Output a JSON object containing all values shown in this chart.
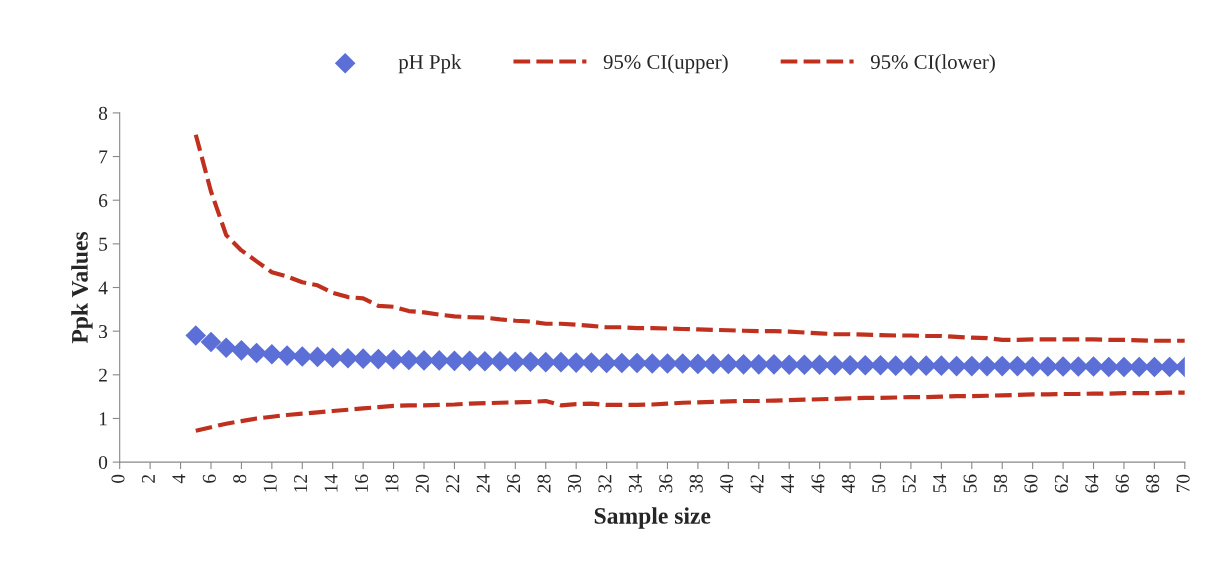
{
  "chart_data": {
    "type": "line",
    "xlabel": "Sample size",
    "ylabel": "Ppk Values",
    "xlim": [
      0,
      70
    ],
    "xticks": [
      0,
      2,
      4,
      6,
      8,
      10,
      12,
      14,
      16,
      18,
      20,
      22,
      24,
      26,
      28,
      30,
      32,
      34,
      36,
      38,
      40,
      42,
      44,
      46,
      48,
      50,
      52,
      54,
      56,
      58,
      60,
      62,
      64,
      66,
      68,
      70
    ],
    "ylim": [
      0,
      8
    ],
    "yticks": [
      0,
      1,
      2,
      3,
      4,
      5,
      6,
      7,
      8
    ],
    "grid": false,
    "legend": "top",
    "series": [
      {
        "name": "pH Ppk",
        "type": "scatter",
        "marker": "diamond",
        "color": "#5b6fd6",
        "x": [
          5,
          6,
          7,
          8,
          9,
          10,
          11,
          12,
          13,
          14,
          15,
          16,
          17,
          18,
          19,
          20,
          21,
          22,
          23,
          24,
          25,
          26,
          27,
          28,
          29,
          30,
          31,
          32,
          33,
          34,
          35,
          36,
          37,
          38,
          39,
          40,
          41,
          42,
          43,
          44,
          45,
          46,
          47,
          48,
          49,
          50,
          51,
          52,
          53,
          54,
          55,
          56,
          57,
          58,
          59,
          60,
          61,
          62,
          63,
          64,
          65,
          66,
          67,
          68,
          69,
          70
        ],
        "values": [
          2.9,
          2.75,
          2.62,
          2.56,
          2.5,
          2.47,
          2.44,
          2.42,
          2.41,
          2.39,
          2.38,
          2.37,
          2.36,
          2.35,
          2.34,
          2.33,
          2.33,
          2.32,
          2.32,
          2.31,
          2.31,
          2.3,
          2.3,
          2.29,
          2.29,
          2.28,
          2.28,
          2.27,
          2.27,
          2.27,
          2.26,
          2.26,
          2.26,
          2.25,
          2.25,
          2.25,
          2.24,
          2.24,
          2.24,
          2.23,
          2.23,
          2.23,
          2.22,
          2.22,
          2.22,
          2.22,
          2.21,
          2.21,
          2.21,
          2.21,
          2.2,
          2.2,
          2.2,
          2.2,
          2.2,
          2.19,
          2.19,
          2.19,
          2.19,
          2.19,
          2.18,
          2.18,
          2.18,
          2.18,
          2.18,
          2.18
        ]
      },
      {
        "name": "95% CI(upper)",
        "line_style": "dashed",
        "color": "#c0301e",
        "x": [
          5,
          6,
          7,
          8,
          9,
          10,
          11,
          12,
          13,
          14,
          15,
          16,
          17,
          18,
          19,
          20,
          21,
          22,
          23,
          24,
          25,
          26,
          27,
          28,
          29,
          30,
          31,
          32,
          33,
          34,
          35,
          36,
          37,
          38,
          39,
          40,
          41,
          42,
          43,
          44,
          45,
          46,
          47,
          48,
          49,
          50,
          51,
          52,
          53,
          54,
          55,
          56,
          57,
          58,
          59,
          60,
          61,
          62,
          63,
          64,
          65,
          66,
          67,
          68,
          69,
          70
        ],
        "values": [
          7.5,
          6.2,
          5.2,
          4.85,
          4.6,
          4.35,
          4.25,
          4.12,
          4.05,
          3.88,
          3.78,
          3.75,
          3.58,
          3.56,
          3.46,
          3.43,
          3.38,
          3.34,
          3.32,
          3.31,
          3.27,
          3.24,
          3.22,
          3.17,
          3.17,
          3.15,
          3.12,
          3.09,
          3.09,
          3.07,
          3.07,
          3.06,
          3.05,
          3.04,
          3.03,
          3.02,
          3.01,
          3.0,
          3.0,
          2.99,
          2.97,
          2.95,
          2.93,
          2.93,
          2.92,
          2.91,
          2.9,
          2.9,
          2.89,
          2.89,
          2.87,
          2.85,
          2.84,
          2.8,
          2.8,
          2.81,
          2.81,
          2.81,
          2.81,
          2.81,
          2.8,
          2.8,
          2.79,
          2.78,
          2.78,
          2.78
        ]
      },
      {
        "name": "95% CI(lower)",
        "line_style": "dashed",
        "color": "#c0301e",
        "x": [
          5,
          6,
          7,
          8,
          9,
          10,
          11,
          12,
          13,
          14,
          15,
          16,
          17,
          18,
          19,
          20,
          21,
          22,
          23,
          24,
          25,
          26,
          27,
          28,
          29,
          30,
          31,
          32,
          33,
          34,
          35,
          36,
          37,
          38,
          39,
          40,
          41,
          42,
          43,
          44,
          45,
          46,
          47,
          48,
          49,
          50,
          51,
          52,
          53,
          54,
          55,
          56,
          57,
          58,
          59,
          60,
          61,
          62,
          63,
          64,
          65,
          66,
          67,
          68,
          69,
          70
        ],
        "values": [
          0.72,
          0.8,
          0.88,
          0.94,
          1.0,
          1.04,
          1.08,
          1.11,
          1.14,
          1.17,
          1.2,
          1.23,
          1.26,
          1.29,
          1.3,
          1.3,
          1.31,
          1.32,
          1.34,
          1.35,
          1.36,
          1.37,
          1.38,
          1.4,
          1.3,
          1.33,
          1.34,
          1.31,
          1.31,
          1.31,
          1.32,
          1.34,
          1.36,
          1.37,
          1.38,
          1.39,
          1.4,
          1.4,
          1.41,
          1.42,
          1.43,
          1.44,
          1.45,
          1.46,
          1.47,
          1.47,
          1.48,
          1.49,
          1.49,
          1.5,
          1.51,
          1.51,
          1.52,
          1.53,
          1.54,
          1.55,
          1.55,
          1.56,
          1.56,
          1.57,
          1.57,
          1.58,
          1.58,
          1.58,
          1.59,
          1.59
        ]
      }
    ]
  }
}
